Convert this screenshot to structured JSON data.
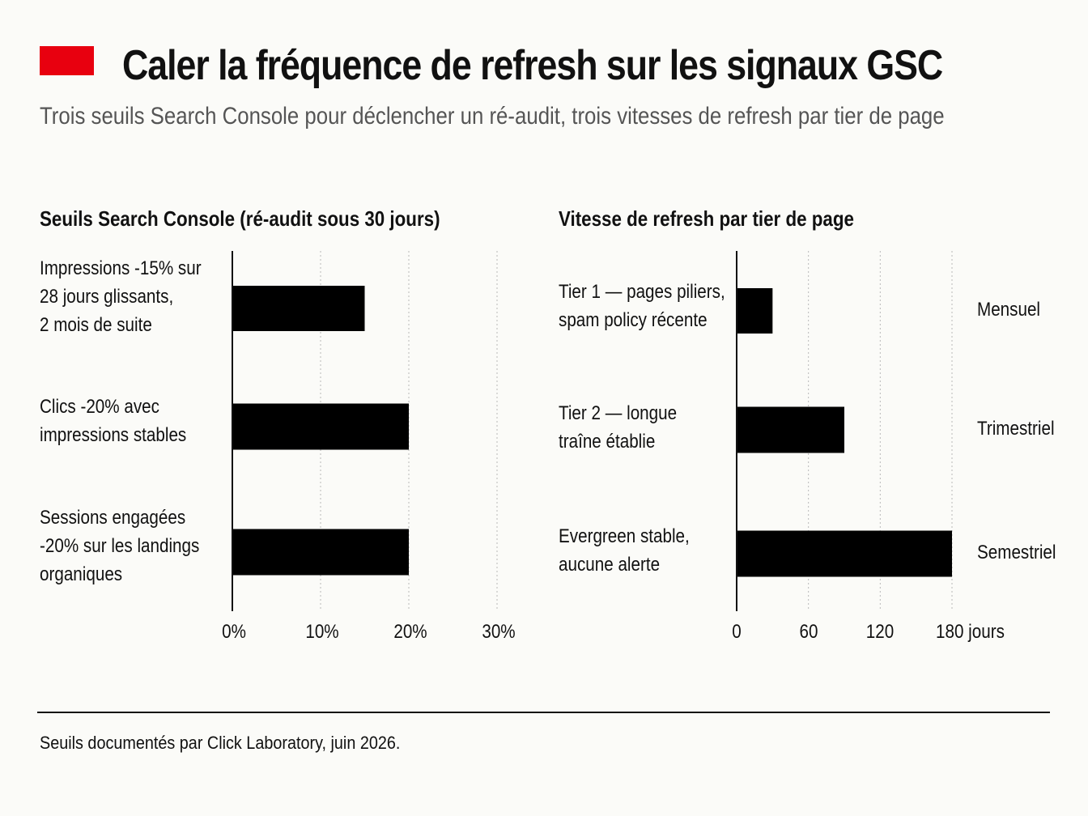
{
  "header": {
    "title": "Caler la fréquence de refresh sur les signaux GSC",
    "subtitle": "Trois seuils Search Console pour déclencher un ré-audit, trois vitesses de refresh par tier de page",
    "accent_color": "#e8000f"
  },
  "chart_data": [
    {
      "type": "bar",
      "orientation": "horizontal",
      "title": "Seuils Search Console (ré-audit sous 30 jours)",
      "categories": [
        [
          "Impressions -15% sur",
          "28 jours glissants,",
          "2 mois de suite"
        ],
        [
          "Clics -20% avec",
          "impressions stables"
        ],
        [
          "Sessions engagées",
          "-20% sur les landings",
          "organiques"
        ]
      ],
      "values": [
        15,
        20,
        20
      ],
      "xlim": [
        0,
        30
      ],
      "ticks": [
        0,
        10,
        20,
        30
      ],
      "tick_labels": [
        "0%",
        "10%",
        "20%",
        "30%"
      ],
      "grid": true,
      "bar_color": "#000000"
    },
    {
      "type": "bar",
      "orientation": "horizontal",
      "title": "Vitesse de refresh par tier de page",
      "categories": [
        [
          "Tier 1 — pages piliers,",
          "spam policy récente"
        ],
        [
          "Tier 2 — longue",
          "traîne établie"
        ],
        [
          "Evergreen stable,",
          "aucune alerte"
        ]
      ],
      "values": [
        30,
        90,
        180
      ],
      "value_labels": [
        "Mensuel",
        "Trimestriel",
        "Semestriel"
      ],
      "xlim": [
        0,
        180
      ],
      "ticks": [
        0,
        60,
        120,
        180
      ],
      "tick_labels": [
        "0",
        "60",
        "120",
        "180 jours"
      ],
      "grid": true,
      "bar_color": "#000000"
    }
  ],
  "footer": {
    "source": "Seuils documentés par Click Laboratory, juin 2026."
  }
}
